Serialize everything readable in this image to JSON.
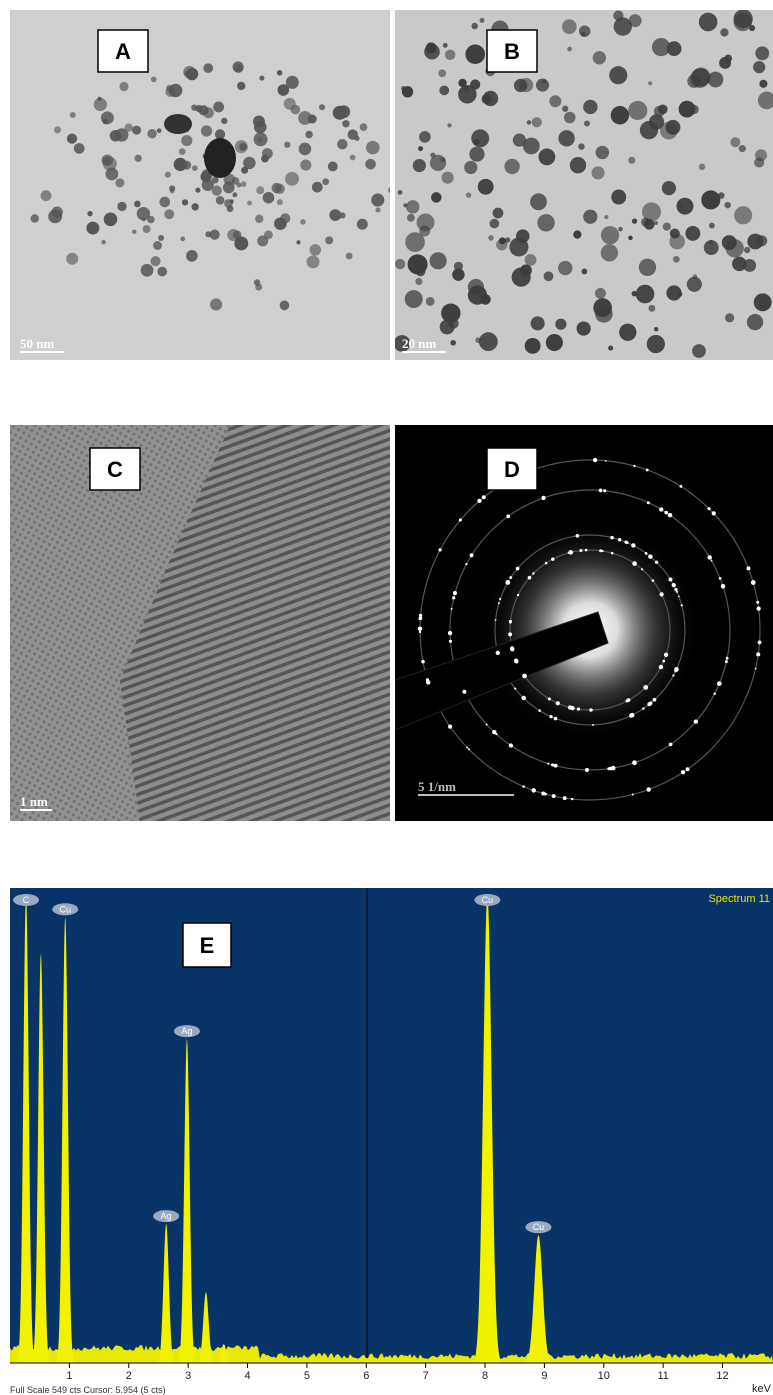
{
  "panels": [
    {
      "label": "A",
      "scale_bar": "50 nm"
    },
    {
      "label": "B",
      "scale_bar": "20 nm"
    },
    {
      "label": "C",
      "scale_bar": "1 nm"
    },
    {
      "label": "D",
      "scale_bar": "5 1/nm"
    }
  ],
  "spectrum": {
    "label": "E",
    "title": "Spectrum 11",
    "x_unit": "keV",
    "footer": "Full Scale 549 cts Cursor: 5.954  (5 cts)",
    "ylim": [
      0,
      549
    ],
    "xlim": [
      0,
      12.85
    ],
    "xticks": [
      1,
      2,
      3,
      4,
      5,
      6,
      7,
      8,
      9,
      10,
      11,
      12
    ],
    "peaks": [
      {
        "label": "C",
        "energy": 0.27,
        "counts": 549
      },
      {
        "label": null,
        "energy": 0.52,
        "counts": 480
      },
      {
        "label": "Cu",
        "energy": 0.93,
        "counts": 523
      },
      {
        "label": "Ag",
        "energy": 2.63,
        "counts": 163
      },
      {
        "label": "Ag",
        "energy": 2.98,
        "counts": 380
      },
      {
        "label": null,
        "energy": 3.3,
        "counts": 83
      },
      {
        "label": null,
        "energy": 3.6,
        "counts": 22
      },
      {
        "label": "Cu",
        "energy": 8.04,
        "counts": 549
      },
      {
        "label": "Cu",
        "energy": 8.9,
        "counts": 150
      }
    ]
  }
}
